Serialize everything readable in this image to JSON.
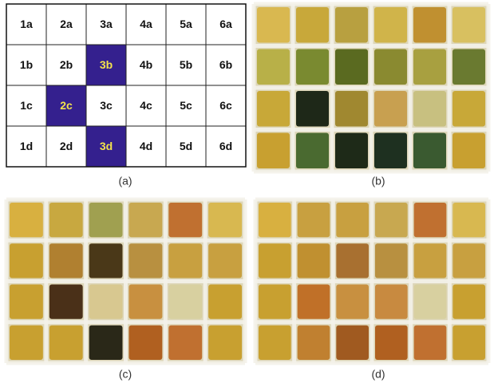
{
  "grid": {
    "rows": [
      [
        {
          "label": "1a"
        },
        {
          "label": "2a"
        },
        {
          "label": "3a"
        },
        {
          "label": "4a"
        },
        {
          "label": "5a"
        },
        {
          "label": "6a"
        }
      ],
      [
        {
          "label": "1b"
        },
        {
          "label": "2b"
        },
        {
          "label": "3b",
          "highlight": true
        },
        {
          "label": "4b"
        },
        {
          "label": "5b"
        },
        {
          "label": "6b"
        }
      ],
      [
        {
          "label": "1c"
        },
        {
          "label": "2c",
          "highlight": true
        },
        {
          "label": "3c"
        },
        {
          "label": "4c"
        },
        {
          "label": "5c"
        },
        {
          "label": "6c"
        }
      ],
      [
        {
          "label": "1d"
        },
        {
          "label": "2d"
        },
        {
          "label": "3d",
          "highlight": true
        },
        {
          "label": "4d"
        },
        {
          "label": "5d"
        },
        {
          "label": "6d"
        }
      ]
    ]
  },
  "captions": [
    "(a)",
    "(b)",
    "(c)",
    "(d)"
  ]
}
